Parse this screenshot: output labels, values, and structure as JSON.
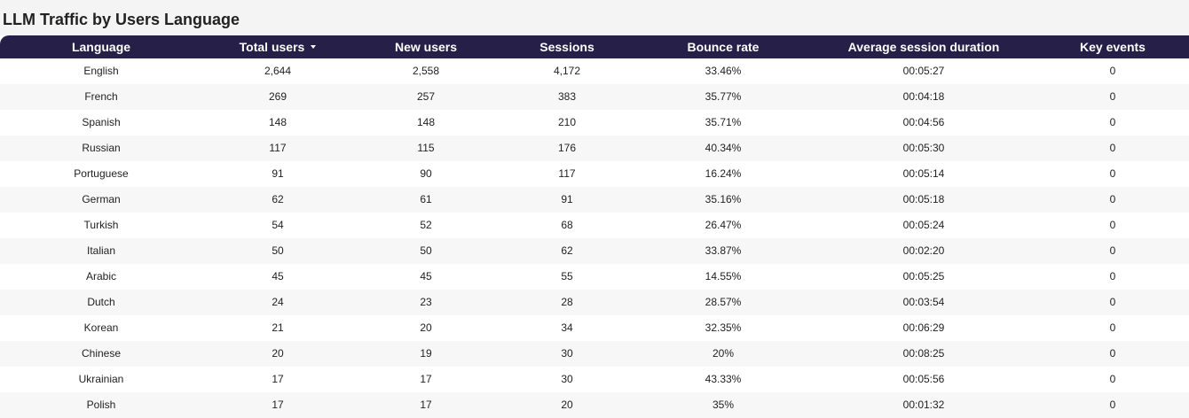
{
  "page": {
    "title": "LLM Traffic by Users Language"
  },
  "table": {
    "columns": [
      {
        "label": "Language",
        "key": "language"
      },
      {
        "label": "Total users",
        "key": "total_users",
        "sorted": "desc"
      },
      {
        "label": "New users",
        "key": "new_users"
      },
      {
        "label": "Sessions",
        "key": "sessions"
      },
      {
        "label": "Bounce rate",
        "key": "bounce_rate"
      },
      {
        "label": "Average session duration",
        "key": "avg_session_duration"
      },
      {
        "label": "Key events",
        "key": "key_events"
      }
    ],
    "rows": [
      {
        "language": "English",
        "total_users": "2,644",
        "new_users": "2,558",
        "sessions": "4,172",
        "bounce_rate": "33.46%",
        "avg_session_duration": "00:05:27",
        "key_events": "0"
      },
      {
        "language": "French",
        "total_users": "269",
        "new_users": "257",
        "sessions": "383",
        "bounce_rate": "35.77%",
        "avg_session_duration": "00:04:18",
        "key_events": "0"
      },
      {
        "language": "Spanish",
        "total_users": "148",
        "new_users": "148",
        "sessions": "210",
        "bounce_rate": "35.71%",
        "avg_session_duration": "00:04:56",
        "key_events": "0"
      },
      {
        "language": "Russian",
        "total_users": "117",
        "new_users": "115",
        "sessions": "176",
        "bounce_rate": "40.34%",
        "avg_session_duration": "00:05:30",
        "key_events": "0"
      },
      {
        "language": "Portuguese",
        "total_users": "91",
        "new_users": "90",
        "sessions": "117",
        "bounce_rate": "16.24%",
        "avg_session_duration": "00:05:14",
        "key_events": "0"
      },
      {
        "language": "German",
        "total_users": "62",
        "new_users": "61",
        "sessions": "91",
        "bounce_rate": "35.16%",
        "avg_session_duration": "00:05:18",
        "key_events": "0"
      },
      {
        "language": "Turkish",
        "total_users": "54",
        "new_users": "52",
        "sessions": "68",
        "bounce_rate": "26.47%",
        "avg_session_duration": "00:05:24",
        "key_events": "0"
      },
      {
        "language": "Italian",
        "total_users": "50",
        "new_users": "50",
        "sessions": "62",
        "bounce_rate": "33.87%",
        "avg_session_duration": "00:02:20",
        "key_events": "0"
      },
      {
        "language": "Arabic",
        "total_users": "45",
        "new_users": "45",
        "sessions": "55",
        "bounce_rate": "14.55%",
        "avg_session_duration": "00:05:25",
        "key_events": "0"
      },
      {
        "language": "Dutch",
        "total_users": "24",
        "new_users": "23",
        "sessions": "28",
        "bounce_rate": "28.57%",
        "avg_session_duration": "00:03:54",
        "key_events": "0"
      },
      {
        "language": "Korean",
        "total_users": "21",
        "new_users": "20",
        "sessions": "34",
        "bounce_rate": "32.35%",
        "avg_session_duration": "00:06:29",
        "key_events": "0"
      },
      {
        "language": "Chinese",
        "total_users": "20",
        "new_users": "19",
        "sessions": "30",
        "bounce_rate": "20%",
        "avg_session_duration": "00:08:25",
        "key_events": "0"
      },
      {
        "language": "Ukrainian",
        "total_users": "17",
        "new_users": "17",
        "sessions": "30",
        "bounce_rate": "43.33%",
        "avg_session_duration": "00:05:56",
        "key_events": "0"
      },
      {
        "language": "Polish",
        "total_users": "17",
        "new_users": "17",
        "sessions": "20",
        "bounce_rate": "35%",
        "avg_session_duration": "00:01:32",
        "key_events": "0"
      }
    ]
  },
  "colors": {
    "header_background": "#261f48",
    "header_text": "#ffffff",
    "row_alt_background": "#f7f7f7",
    "title_background": "#f4f4f4"
  },
  "icons": {
    "sort": "sort-descending-icon"
  }
}
